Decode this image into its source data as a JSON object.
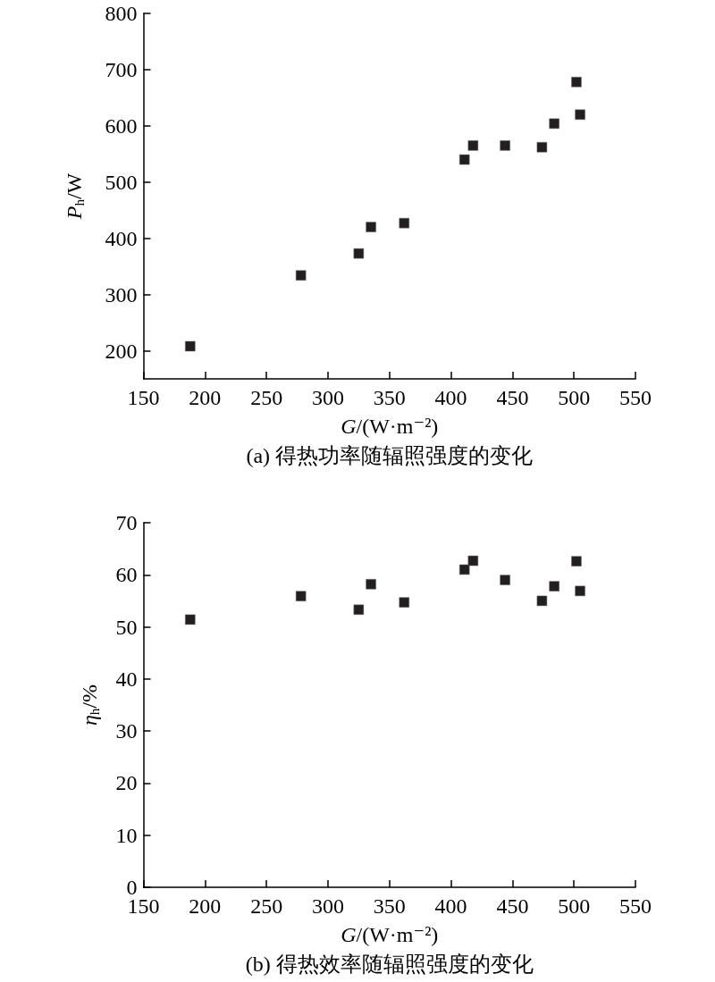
{
  "chart_data": [
    {
      "type": "scatter",
      "title": "(a) 得热功率随辐照强度的变化",
      "xlabel": "G/(W·m⁻²)",
      "ylabel": "P$_{h}$/W",
      "color": "#231f20",
      "marker": "square",
      "x": [
        188,
        278,
        325,
        335,
        362,
        411,
        418,
        444,
        474,
        484,
        502,
        505
      ],
      "values": [
        208,
        334,
        373,
        420,
        427,
        540,
        565,
        565,
        562,
        604,
        678,
        620
      ],
      "xlim": [
        150,
        550
      ],
      "xticks": [
        150,
        200,
        250,
        300,
        350,
        400,
        450,
        500,
        550
      ],
      "ylim": [
        150,
        800
      ],
      "yticks": [
        200,
        300,
        400,
        500,
        600,
        700,
        800
      ]
    },
    {
      "type": "scatter",
      "title": "(b) 得热效率随辐照强度的变化",
      "xlabel": "G/(W·m⁻²)",
      "ylabel": "η$_{h}$/%",
      "color": "#231f20",
      "marker": "square",
      "x": [
        188,
        278,
        325,
        335,
        362,
        411,
        418,
        444,
        474,
        484,
        502,
        505
      ],
      "values": [
        51.4,
        55.9,
        53.3,
        58.2,
        54.7,
        61,
        62.7,
        59,
        55,
        57.8,
        62.6,
        56.9
      ],
      "xlim": [
        150,
        550
      ],
      "xticks": [
        150,
        200,
        250,
        300,
        350,
        400,
        450,
        500,
        550
      ],
      "ylim": [
        0,
        70
      ],
      "yticks": [
        0,
        10,
        20,
        30,
        40,
        50,
        60,
        70
      ]
    }
  ]
}
